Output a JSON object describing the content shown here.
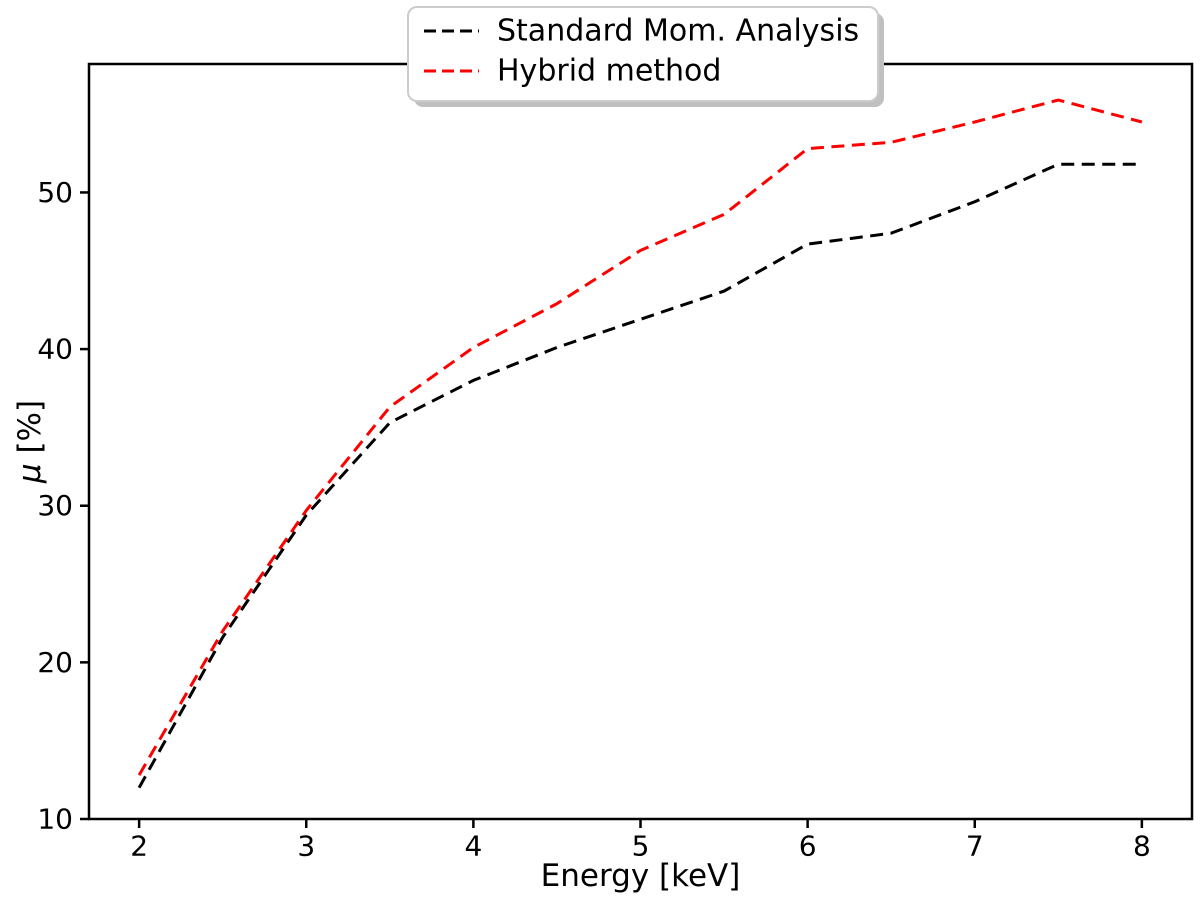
{
  "figure": {
    "background": "#ffffff",
    "axes_edge_color": "#000000"
  },
  "chart_data": {
    "type": "line",
    "title": "",
    "xlabel": "Energy [keV]",
    "ylabel": "μ [%]",
    "xlim": [
      1.7,
      8.3
    ],
    "ylim": [
      10,
      58.2
    ],
    "grid": false,
    "legend_position": "upper center",
    "xticks": [
      2,
      3,
      4,
      5,
      6,
      7,
      8
    ],
    "xtick_labels": [
      "2",
      "3",
      "4",
      "5",
      "6",
      "7",
      "8"
    ],
    "yticks": [
      10,
      20,
      30,
      40,
      50
    ],
    "ytick_labels": [
      "10",
      "20",
      "30",
      "40",
      "50"
    ],
    "x": [
      2,
      2.5,
      3,
      3.5,
      4,
      4.5,
      5,
      5.5,
      6,
      6.5,
      7,
      7.5,
      8
    ],
    "series": [
      {
        "name": "Standard Mom. Analysis",
        "color": "#000000",
        "linestyle": "dashed",
        "values": [
          12.0,
          21.6,
          29.4,
          35.3,
          38.0,
          40.1,
          41.9,
          43.7,
          46.7,
          47.4,
          49.4,
          51.8,
          51.8
        ]
      },
      {
        "name": "Hybrid method",
        "color": "#ff0000",
        "linestyle": "dashed",
        "values": [
          12.8,
          22.0,
          29.7,
          36.3,
          40.1,
          42.9,
          46.3,
          48.6,
          52.8,
          53.2,
          54.5,
          55.9,
          54.5
        ]
      }
    ],
    "legend": {
      "border_color": "#cccccc",
      "shadow_color": "#c0c0c0",
      "fill": "#ffffff"
    }
  }
}
